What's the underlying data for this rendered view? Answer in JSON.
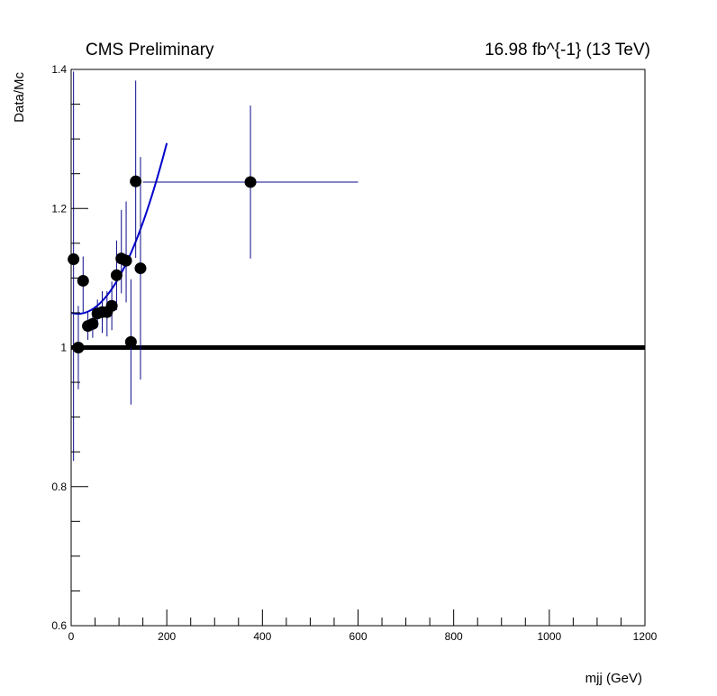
{
  "chart_data": {
    "type": "scatter",
    "title_left": "CMS Preliminary",
    "title_right": "16.98 fb^{-1} (13 TeV)",
    "xlabel": "mjj (GeV)",
    "ylabel": "Data/Mc",
    "xlim": [
      0,
      1200
    ],
    "ylim": [
      0.6,
      1.4
    ],
    "x_ticks": [
      0,
      200,
      400,
      600,
      800,
      1000,
      1200
    ],
    "x_tick_labels": [
      "0",
      "200",
      "400",
      "600",
      "800",
      "1000",
      "1200"
    ],
    "y_ticks": [
      0.6,
      0.8,
      1.0,
      1.2,
      1.4
    ],
    "y_tick_labels": [
      "0.6",
      "0.8",
      "1",
      "1.2",
      "1.4"
    ],
    "grid": false,
    "reference_line": {
      "y": 1.0,
      "color": "#000000"
    },
    "points": [
      {
        "x": 5,
        "y": 1.127,
        "xerr": 5,
        "yerr": [
          0.29,
          0.27
        ]
      },
      {
        "x": 15,
        "y": 1.0,
        "xerr": 5,
        "yerr": [
          0.06,
          0.06
        ]
      },
      {
        "x": 25,
        "y": 1.096,
        "xerr": 5,
        "yerr": [
          0.045,
          0.035
        ]
      },
      {
        "x": 35,
        "y": 1.031,
        "xerr": 5,
        "yerr": [
          0.02,
          0.02
        ]
      },
      {
        "x": 45,
        "y": 1.034,
        "xerr": 5,
        "yerr": [
          0.02,
          0.02
        ]
      },
      {
        "x": 55,
        "y": 1.049,
        "xerr": 5,
        "yerr": [
          0.02,
          0.02
        ]
      },
      {
        "x": 65,
        "y": 1.051,
        "xerr": 5,
        "yerr": [
          0.03,
          0.03
        ]
      },
      {
        "x": 75,
        "y": 1.051,
        "xerr": 5,
        "yerr": [
          0.035,
          0.03
        ]
      },
      {
        "x": 85,
        "y": 1.06,
        "xerr": 5,
        "yerr": [
          0.035,
          0.035
        ]
      },
      {
        "x": 95,
        "y": 1.104,
        "xerr": 5,
        "yerr": [
          0.05,
          0.05
        ]
      },
      {
        "x": 105,
        "y": 1.128,
        "xerr": 5,
        "yerr": [
          0.05,
          0.07
        ]
      },
      {
        "x": 115,
        "y": 1.125,
        "xerr": 5,
        "yerr": [
          0.06,
          0.085
        ]
      },
      {
        "x": 125,
        "y": 1.008,
        "xerr": 5,
        "yerr": [
          0.09,
          0.09
        ]
      },
      {
        "x": 135,
        "y": 1.239,
        "xerr": 5,
        "yerr": [
          0.11,
          0.145
        ]
      },
      {
        "x": 145,
        "y": 1.114,
        "xerr": 5,
        "yerr": [
          0.16,
          0.16
        ]
      },
      {
        "x": 375,
        "y": 1.238,
        "xerr": 225,
        "yerr": [
          0.11,
          0.11
        ]
      }
    ],
    "point_color": "#000000",
    "error_bar_color": "#0a0a8c",
    "fit": {
      "type": "quadratic",
      "x_range": [
        0,
        200
      ],
      "coefficients": [
        1.05,
        -0.0002,
        7.1e-06
      ],
      "color": "#0000cc"
    }
  }
}
